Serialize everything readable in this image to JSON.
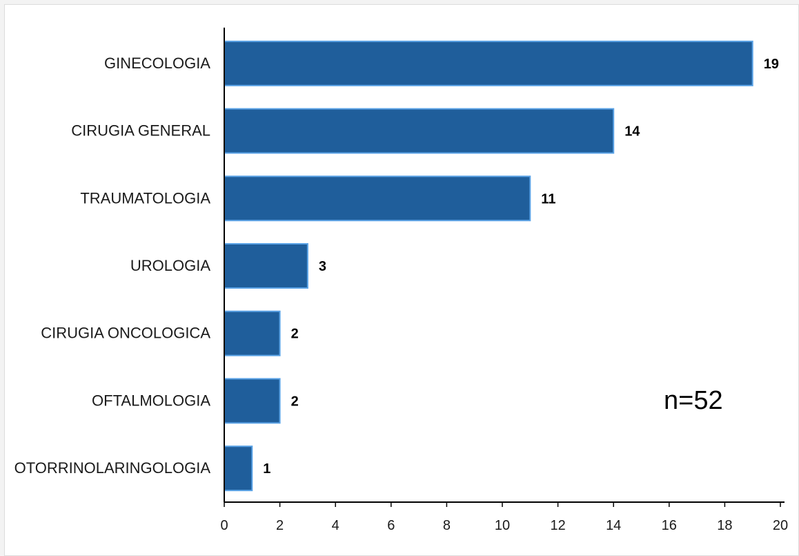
{
  "chart_data": {
    "type": "bar",
    "orientation": "horizontal",
    "categories": [
      "GINECOLOGIA",
      "CIRUGIA GENERAL",
      "TRAUMATOLOGIA",
      "UROLOGIA",
      "CIRUGIA ONCOLOGICA",
      "OFTALMOLOGIA",
      "OTORRINOLARINGOLOGIA"
    ],
    "values": [
      19,
      14,
      11,
      3,
      2,
      2,
      1
    ],
    "xlim": [
      0,
      20
    ],
    "xticks": [
      "0",
      "2",
      "4",
      "6",
      "8",
      "10",
      "12",
      "14",
      "16",
      "18",
      "20"
    ],
    "grid": false,
    "annotation": "n=52",
    "colors": {
      "bar_fill": "#1f5e9b",
      "bar_edge": "#5ba3e6"
    }
  }
}
